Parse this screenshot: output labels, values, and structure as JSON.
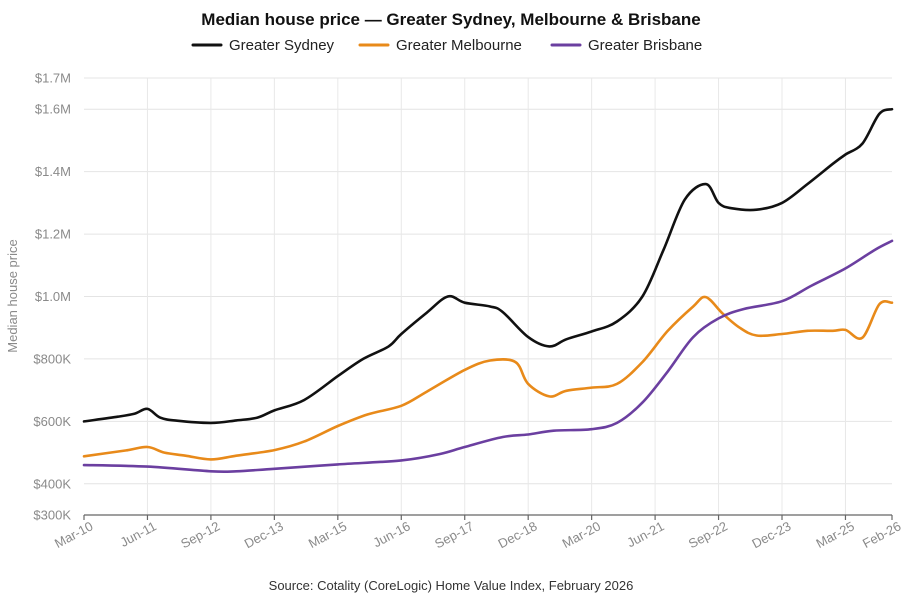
{
  "chart_data": {
    "type": "line",
    "title": "Median house price — Greater Sydney, Melbourne & Brisbane",
    "ylabel": "Median house price",
    "source": "Source: Cotality (CoreLogic) Home Value Index, February 2026",
    "legend_position": "top-center",
    "grid": true,
    "ylim": [
      300000,
      1700000
    ],
    "y_ticks": [
      {
        "value": 1700000,
        "label": "$1.7M"
      },
      {
        "value": 1600000,
        "label": "$1.6M"
      },
      {
        "value": 1400000,
        "label": "$1.4M"
      },
      {
        "value": 1200000,
        "label": "$1.2M"
      },
      {
        "value": 1000000,
        "label": "$1.0M"
      },
      {
        "value": 800000,
        "label": "$800K"
      },
      {
        "value": 600000,
        "label": "$600K"
      },
      {
        "value": 400000,
        "label": "$400K"
      },
      {
        "value": 300000,
        "label": "$300K"
      }
    ],
    "x_ticks": [
      "Mar-10",
      "Jun-11",
      "Sep-12",
      "Dec-13",
      "Mar-15",
      "Jun-16",
      "Sep-17",
      "Dec-18",
      "Mar-20",
      "Jun-21",
      "Sep-22",
      "Dec-23",
      "Mar-25",
      "Feb-26"
    ],
    "series": [
      {
        "name": "Greater Sydney",
        "color": "#111111",
        "values": [
          [
            "Mar-10",
            600000
          ],
          [
            "Nov-10",
            615000
          ],
          [
            "Mar-11",
            625000
          ],
          [
            "Jun-11",
            640000
          ],
          [
            "Sep-11",
            612000
          ],
          [
            "Jan-12",
            602000
          ],
          [
            "Sep-12",
            595000
          ],
          [
            "Mar-13",
            603000
          ],
          [
            "Aug-13",
            612000
          ],
          [
            "Dec-13",
            635000
          ],
          [
            "Jul-14",
            668000
          ],
          [
            "Mar-15",
            745000
          ],
          [
            "Sep-15",
            800000
          ],
          [
            "Mar-16",
            840000
          ],
          [
            "Jun-16",
            880000
          ],
          [
            "Dec-16",
            948000
          ],
          [
            "May-17",
            1000000
          ],
          [
            "Sep-17",
            980000
          ],
          [
            "Mar-18",
            968000
          ],
          [
            "Jun-18",
            950000
          ],
          [
            "Dec-18",
            870000
          ],
          [
            "May-19",
            840000
          ],
          [
            "Sep-19",
            863000
          ],
          [
            "Mar-20",
            888000
          ],
          [
            "Sep-20",
            920000
          ],
          [
            "Mar-21",
            1000000
          ],
          [
            "Aug-21",
            1150000
          ],
          [
            "Jan-22",
            1310000
          ],
          [
            "Jun-22",
            1360000
          ],
          [
            "Sep-22",
            1300000
          ],
          [
            "Dec-22",
            1283000
          ],
          [
            "Jun-23",
            1278000
          ],
          [
            "Dec-23",
            1300000
          ],
          [
            "Jun-24",
            1360000
          ],
          [
            "Dec-24",
            1425000
          ],
          [
            "Mar-25",
            1455000
          ],
          [
            "Jul-25",
            1490000
          ],
          [
            "Nov-25",
            1585000
          ],
          [
            "Feb-26",
            1600000
          ]
        ]
      },
      {
        "name": "Greater Melbourne",
        "color": "#E88A1A",
        "values": [
          [
            "Mar-10",
            488000
          ],
          [
            "Jan-11",
            507000
          ],
          [
            "Jun-11",
            518000
          ],
          [
            "Oct-11",
            500000
          ],
          [
            "Mar-12",
            490000
          ],
          [
            "Sep-12",
            478000
          ],
          [
            "Mar-13",
            490000
          ],
          [
            "Dec-13",
            508000
          ],
          [
            "Jul-14",
            535000
          ],
          [
            "Mar-15",
            585000
          ],
          [
            "Oct-15",
            622000
          ],
          [
            "Jun-16",
            650000
          ],
          [
            "Dec-16",
            695000
          ],
          [
            "Sep-17",
            765000
          ],
          [
            "Mar-18",
            795000
          ],
          [
            "Sep-18",
            790000
          ],
          [
            "Dec-18",
            720000
          ],
          [
            "May-19",
            680000
          ],
          [
            "Sep-19",
            698000
          ],
          [
            "Mar-20",
            708000
          ],
          [
            "Sep-20",
            720000
          ],
          [
            "Mar-21",
            790000
          ],
          [
            "Sep-21",
            890000
          ],
          [
            "Mar-22",
            968000
          ],
          [
            "Jun-22",
            998000
          ],
          [
            "Oct-22",
            945000
          ],
          [
            "Feb-23",
            900000
          ],
          [
            "Jun-23",
            875000
          ],
          [
            "Dec-23",
            880000
          ],
          [
            "Jun-24",
            890000
          ],
          [
            "Dec-24",
            890000
          ],
          [
            "Mar-25",
            893000
          ],
          [
            "Jul-25",
            868000
          ],
          [
            "Nov-25",
            975000
          ],
          [
            "Feb-26",
            980000
          ]
        ]
      },
      {
        "name": "Greater Brisbane",
        "color": "#6B3FA0",
        "values": [
          [
            "Mar-10",
            460000
          ],
          [
            "Jun-11",
            455000
          ],
          [
            "Sep-12",
            440000
          ],
          [
            "Mar-13",
            440000
          ],
          [
            "Dec-13",
            448000
          ],
          [
            "Mar-15",
            462000
          ],
          [
            "Jun-16",
            475000
          ],
          [
            "Mar-17",
            495000
          ],
          [
            "Sep-17",
            518000
          ],
          [
            "Jun-18",
            550000
          ],
          [
            "Dec-18",
            558000
          ],
          [
            "Jun-19",
            570000
          ],
          [
            "Mar-20",
            575000
          ],
          [
            "Sep-20",
            595000
          ],
          [
            "Mar-21",
            660000
          ],
          [
            "Sep-21",
            760000
          ],
          [
            "Mar-22",
            870000
          ],
          [
            "Sep-22",
            930000
          ],
          [
            "Mar-23",
            960000
          ],
          [
            "Dec-23",
            985000
          ],
          [
            "Jul-24",
            1035000
          ],
          [
            "Mar-25",
            1090000
          ],
          [
            "Oct-25",
            1150000
          ],
          [
            "Feb-26",
            1178000
          ]
        ]
      }
    ]
  }
}
